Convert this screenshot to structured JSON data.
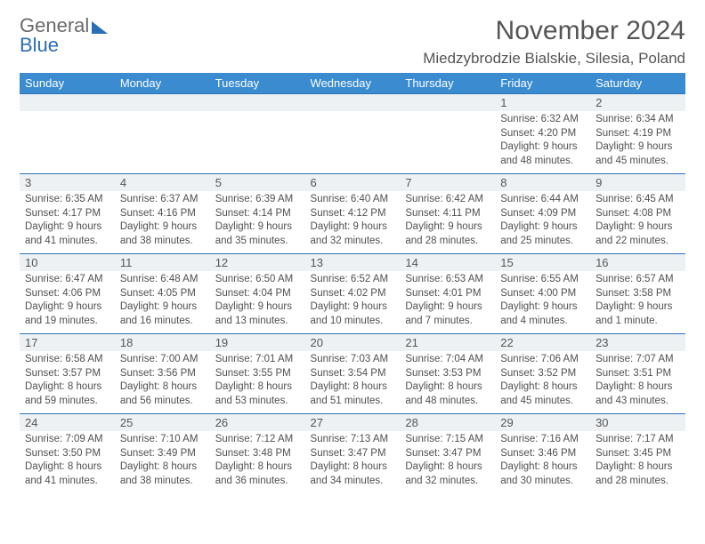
{
  "logo": {
    "line1": "General",
    "line2": "Blue"
  },
  "title": "November 2024",
  "location": "Miedzybrodzie Bialskie, Silesia, Poland",
  "colors": {
    "header_bg": "#3a8bd0",
    "header_fg": "#ffffff",
    "daynum_bg": "#eef1f3",
    "rule": "#2f73b7",
    "text": "#505050",
    "logo_gray": "#6a6a6a",
    "logo_blue": "#2a6db8"
  },
  "day_headers": [
    "Sunday",
    "Monday",
    "Tuesday",
    "Wednesday",
    "Thursday",
    "Friday",
    "Saturday"
  ],
  "weeks": [
    {
      "nums": [
        "",
        "",
        "",
        "",
        "",
        "1",
        "2"
      ],
      "cells": [
        null,
        null,
        null,
        null,
        null,
        {
          "sunrise": "6:32 AM",
          "sunset": "4:20 PM",
          "daylight": "9 hours and 48 minutes."
        },
        {
          "sunrise": "6:34 AM",
          "sunset": "4:19 PM",
          "daylight": "9 hours and 45 minutes."
        }
      ]
    },
    {
      "nums": [
        "3",
        "4",
        "5",
        "6",
        "7",
        "8",
        "9"
      ],
      "cells": [
        {
          "sunrise": "6:35 AM",
          "sunset": "4:17 PM",
          "daylight": "9 hours and 41 minutes."
        },
        {
          "sunrise": "6:37 AM",
          "sunset": "4:16 PM",
          "daylight": "9 hours and 38 minutes."
        },
        {
          "sunrise": "6:39 AM",
          "sunset": "4:14 PM",
          "daylight": "9 hours and 35 minutes."
        },
        {
          "sunrise": "6:40 AM",
          "sunset": "4:12 PM",
          "daylight": "9 hours and 32 minutes."
        },
        {
          "sunrise": "6:42 AM",
          "sunset": "4:11 PM",
          "daylight": "9 hours and 28 minutes."
        },
        {
          "sunrise": "6:44 AM",
          "sunset": "4:09 PM",
          "daylight": "9 hours and 25 minutes."
        },
        {
          "sunrise": "6:45 AM",
          "sunset": "4:08 PM",
          "daylight": "9 hours and 22 minutes."
        }
      ]
    },
    {
      "nums": [
        "10",
        "11",
        "12",
        "13",
        "14",
        "15",
        "16"
      ],
      "cells": [
        {
          "sunrise": "6:47 AM",
          "sunset": "4:06 PM",
          "daylight": "9 hours and 19 minutes."
        },
        {
          "sunrise": "6:48 AM",
          "sunset": "4:05 PM",
          "daylight": "9 hours and 16 minutes."
        },
        {
          "sunrise": "6:50 AM",
          "sunset": "4:04 PM",
          "daylight": "9 hours and 13 minutes."
        },
        {
          "sunrise": "6:52 AM",
          "sunset": "4:02 PM",
          "daylight": "9 hours and 10 minutes."
        },
        {
          "sunrise": "6:53 AM",
          "sunset": "4:01 PM",
          "daylight": "9 hours and 7 minutes."
        },
        {
          "sunrise": "6:55 AM",
          "sunset": "4:00 PM",
          "daylight": "9 hours and 4 minutes."
        },
        {
          "sunrise": "6:57 AM",
          "sunset": "3:58 PM",
          "daylight": "9 hours and 1 minute."
        }
      ]
    },
    {
      "nums": [
        "17",
        "18",
        "19",
        "20",
        "21",
        "22",
        "23"
      ],
      "cells": [
        {
          "sunrise": "6:58 AM",
          "sunset": "3:57 PM",
          "daylight": "8 hours and 59 minutes."
        },
        {
          "sunrise": "7:00 AM",
          "sunset": "3:56 PM",
          "daylight": "8 hours and 56 minutes."
        },
        {
          "sunrise": "7:01 AM",
          "sunset": "3:55 PM",
          "daylight": "8 hours and 53 minutes."
        },
        {
          "sunrise": "7:03 AM",
          "sunset": "3:54 PM",
          "daylight": "8 hours and 51 minutes."
        },
        {
          "sunrise": "7:04 AM",
          "sunset": "3:53 PM",
          "daylight": "8 hours and 48 minutes."
        },
        {
          "sunrise": "7:06 AM",
          "sunset": "3:52 PM",
          "daylight": "8 hours and 45 minutes."
        },
        {
          "sunrise": "7:07 AM",
          "sunset": "3:51 PM",
          "daylight": "8 hours and 43 minutes."
        }
      ]
    },
    {
      "nums": [
        "24",
        "25",
        "26",
        "27",
        "28",
        "29",
        "30"
      ],
      "cells": [
        {
          "sunrise": "7:09 AM",
          "sunset": "3:50 PM",
          "daylight": "8 hours and 41 minutes."
        },
        {
          "sunrise": "7:10 AM",
          "sunset": "3:49 PM",
          "daylight": "8 hours and 38 minutes."
        },
        {
          "sunrise": "7:12 AM",
          "sunset": "3:48 PM",
          "daylight": "8 hours and 36 minutes."
        },
        {
          "sunrise": "7:13 AM",
          "sunset": "3:47 PM",
          "daylight": "8 hours and 34 minutes."
        },
        {
          "sunrise": "7:15 AM",
          "sunset": "3:47 PM",
          "daylight": "8 hours and 32 minutes."
        },
        {
          "sunrise": "7:16 AM",
          "sunset": "3:46 PM",
          "daylight": "8 hours and 30 minutes."
        },
        {
          "sunrise": "7:17 AM",
          "sunset": "3:45 PM",
          "daylight": "8 hours and 28 minutes."
        }
      ]
    }
  ],
  "labels": {
    "sunrise": "Sunrise: ",
    "sunset": "Sunset: ",
    "daylight": "Daylight: "
  }
}
